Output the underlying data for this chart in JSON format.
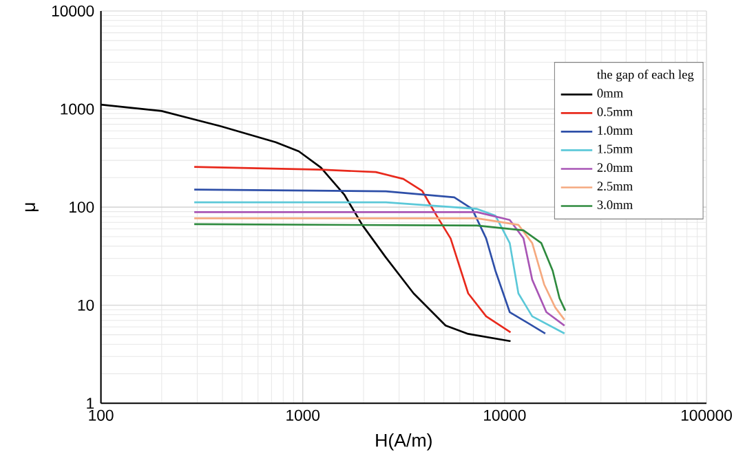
{
  "chart_data": {
    "type": "line",
    "xlabel": "H(A/m)",
    "ylabel": "μ",
    "log": "xy",
    "xlim": [
      100,
      100000
    ],
    "ylim": [
      1,
      10000
    ],
    "xticks": [
      100,
      1000,
      10000,
      100000
    ],
    "yticks": [
      1,
      10,
      100,
      1000,
      10000
    ],
    "grid": true,
    "legend": "top right",
    "legend_title": "the gap of each leg",
    "series": [
      {
        "name": "0mm",
        "color": "#000000",
        "x": [
          100,
          200,
          392,
          734,
          956,
          1230,
          1610,
          1970,
          2570,
          3540,
          5100,
          6600,
          10700
        ],
        "values": [
          1110,
          955,
          668,
          459,
          371,
          253,
          133,
          66,
          31,
          13.2,
          6.2,
          5.1,
          4.3
        ]
      },
      {
        "name": "0.5mm",
        "color": "#e8291c",
        "x": [
          290,
          1230,
          2300,
          3150,
          3900,
          4600,
          5400,
          6600,
          8100,
          10700
        ],
        "values": [
          257,
          241,
          228,
          194,
          147,
          82,
          48,
          13.2,
          7.7,
          5.3
        ]
      },
      {
        "name": "1.0mm",
        "color": "#2e4fa8",
        "x": [
          290,
          2580,
          5630,
          6900,
          8100,
          9000,
          10600,
          15900
        ],
        "values": [
          151,
          145,
          126,
          96,
          48,
          22.5,
          8.5,
          5.15
        ]
      },
      {
        "name": "1.5mm",
        "color": "#5bc8d8",
        "x": [
          290,
          2580,
          7300,
          9000,
          10600,
          11700,
          13700,
          19800
        ],
        "values": [
          112,
          112,
          96,
          82,
          43,
          13.2,
          7.7,
          5.15
        ]
      },
      {
        "name": "2.0mm",
        "color": "#a855b5",
        "x": [
          290,
          7300,
          10600,
          12400,
          13700,
          16100,
          19800
        ],
        "values": [
          89,
          89,
          74,
          48,
          18.2,
          8.5,
          6.2
        ]
      },
      {
        "name": "2.5mm",
        "color": "#f5a97f",
        "x": [
          290,
          7300,
          11700,
          13700,
          15700,
          17800,
          19800
        ],
        "values": [
          77,
          77,
          66,
          43,
          16.3,
          9.5,
          7.1
        ]
      },
      {
        "name": "3.0mm",
        "color": "#2e8a3e",
        "x": [
          290,
          7300,
          12400,
          15200,
          17300,
          18700,
          20000
        ],
        "values": [
          67,
          65,
          58,
          43,
          22.5,
          11.8,
          8.8
        ]
      }
    ]
  }
}
